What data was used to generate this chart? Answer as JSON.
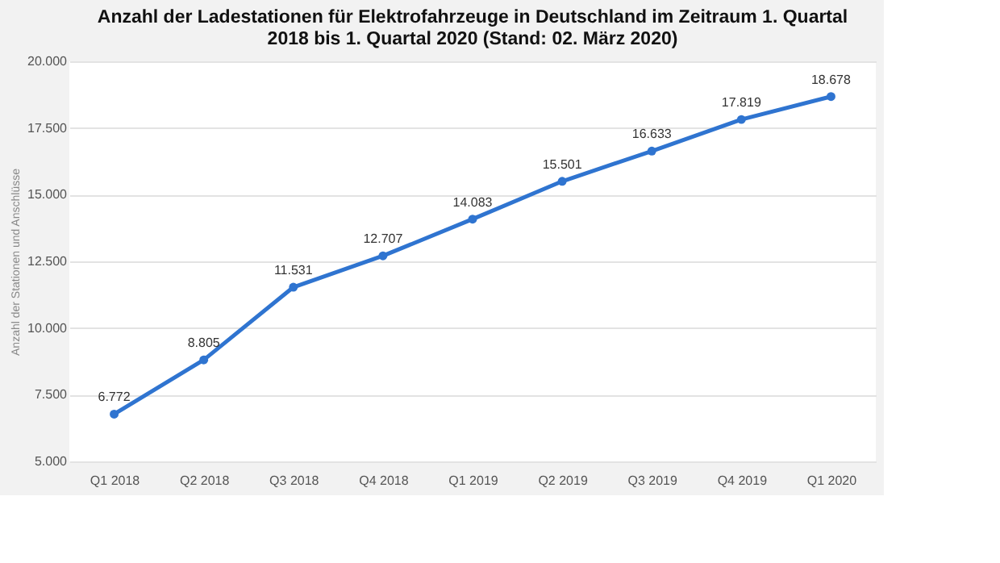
{
  "chart_data": {
    "type": "line",
    "title": "Anzahl der Ladestationen für Elektrofahrzeuge in Deutschland im Zeitraum 1. Quartal 2018 bis 1. Quartal 2020 (Stand: 02. März 2020)",
    "ylabel": "Anzahl der Stationen und Anschlüsse",
    "categories": [
      "Q1 2018",
      "Q2 2018",
      "Q3 2018",
      "Q4 2018",
      "Q1 2019",
      "Q2 2019",
      "Q3 2019",
      "Q4 2019",
      "Q1 2020"
    ],
    "series": [
      {
        "color": "#2f74d0",
        "values": [
          6772,
          8805,
          11531,
          12707,
          14083,
          15501,
          16633,
          17819,
          18678
        ],
        "value_labels": [
          "6.772",
          "8.805",
          "11.531",
          "12.707",
          "14.083",
          "15.501",
          "16.633",
          "17.819",
          "18.678"
        ]
      }
    ],
    "ylim": [
      5000,
      20000
    ],
    "yticks": [
      {
        "value": 5000,
        "label": "5.000"
      },
      {
        "value": 7500,
        "label": "7.500"
      },
      {
        "value": 10000,
        "label": "10.000"
      },
      {
        "value": 12500,
        "label": "12.500"
      },
      {
        "value": 15000,
        "label": "15.000"
      },
      {
        "value": 17500,
        "label": "17.500"
      },
      {
        "value": 20000,
        "label": "20.000"
      }
    ],
    "grid": "y",
    "marker": "circle",
    "line_style": "solid"
  }
}
